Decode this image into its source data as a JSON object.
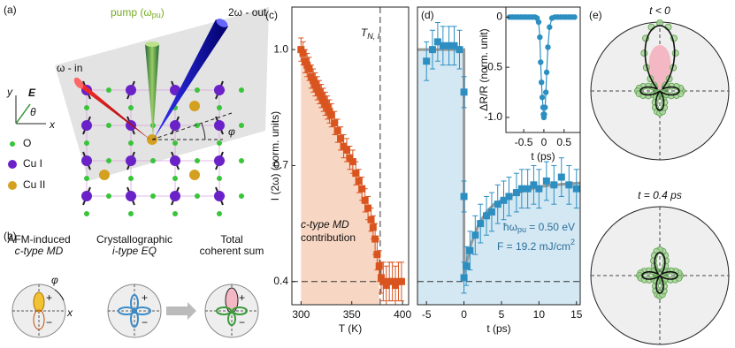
{
  "panel_labels": [
    "(a)",
    "(b)",
    "(c)",
    "(d)",
    "(e)"
  ],
  "panel_a": {
    "pump": [
      "pump (ω",
      "pu",
      ")"
    ],
    "out": "2ω - out",
    "in": "ω - in",
    "axes": [
      "y",
      "E",
      "θ",
      "x"
    ],
    "phi": "φ",
    "legend": [
      "O",
      "Cu I",
      "Cu II"
    ]
  },
  "panel_b": {
    "titles": [
      [
        "AFM-induced",
        "c-type MD"
      ],
      [
        "Crystallographic",
        "i-type EQ"
      ],
      [
        "Total",
        "coherent sum"
      ]
    ],
    "phi": "φ",
    "x": "x",
    "signs": [
      "+",
      "−"
    ]
  },
  "panel_e": {
    "titles": [
      "t < 0",
      "t = 0.4 ps"
    ]
  },
  "chart_data": [
    {
      "type": "scatter",
      "marker": "square",
      "color": "#d9541e",
      "fill": "#f8d6c4",
      "xlabel": "T (K)",
      "ylabel": "I (2ω) (norm. units)",
      "vline": 378,
      "vline_label": [
        "T",
        "N, I"
      ],
      "hline": 0.4,
      "annotation_lines": [
        "c-type MD",
        "contribution"
      ],
      "xlim": [
        291,
        406
      ],
      "ylim": [
        0.34,
        1.11
      ],
      "xticks": [
        300,
        350,
        400
      ],
      "yticks": [
        0.4,
        0.7,
        {
          "value": 1,
          "label": "1.0"
        }
      ],
      "x": [
        300,
        302,
        304,
        306,
        308,
        310,
        312,
        314,
        316,
        318,
        320,
        322,
        324,
        326,
        328,
        330,
        333,
        336,
        339,
        342,
        345,
        348,
        351,
        354,
        357,
        360,
        363,
        366,
        369,
        371,
        373,
        375,
        377,
        379,
        381,
        384,
        387,
        390,
        393,
        396,
        399
      ],
      "values": [
        1.0,
        0.99,
        0.97,
        0.96,
        0.95,
        0.93,
        0.92,
        0.91,
        0.9,
        0.89,
        0.88,
        0.87,
        0.86,
        0.85,
        0.84,
        0.83,
        0.81,
        0.79,
        0.77,
        0.75,
        0.74,
        0.72,
        0.71,
        0.68,
        0.66,
        0.64,
        0.61,
        0.59,
        0.56,
        0.54,
        0.51,
        0.47,
        0.44,
        0.41,
        0.4,
        0.39,
        0.4,
        0.4,
        0.39,
        0.4,
        0.4
      ],
      "errors": [
        0.03,
        0.03,
        0.03,
        0.03,
        0.03,
        0.03,
        0.03,
        0.03,
        0.03,
        0.03,
        0.03,
        0.03,
        0.03,
        0.03,
        0.03,
        0.03,
        0.03,
        0.03,
        0.03,
        0.03,
        0.03,
        0.03,
        0.03,
        0.03,
        0.03,
        0.03,
        0.03,
        0.03,
        0.03,
        0.03,
        0.04,
        0.04,
        0.04,
        0.04,
        0.05,
        0.05,
        0.05,
        0.05,
        0.05,
        0.05,
        0.05
      ]
    },
    {
      "type": "scatter",
      "marker": "square",
      "color": "#2d8fc1",
      "fill": "#d3e8f3",
      "xlabel": "t (ps)",
      "hline": 0.4,
      "annotations": [
        [
          "ħω",
          "pu",
          " = 0.50 eV"
        ],
        [
          "F = 19.2 mJ/cm",
          "2"
        ]
      ],
      "xlim": [
        -6.2,
        15.5
      ],
      "ylim": [
        0.34,
        1.11
      ],
      "xticks": [
        -5,
        0,
        5,
        10,
        15
      ],
      "x": [
        -5,
        -4.2,
        -3.5,
        -2.8,
        -2,
        -1.3,
        -0.6,
        0,
        0,
        0,
        0.3,
        0.8,
        1.5,
        2.2,
        3,
        3.7,
        4.5,
        5.3,
        6,
        7,
        7.7,
        8.5,
        9.3,
        10,
        11,
        12,
        13,
        14,
        15
      ],
      "values": [
        0.97,
        1,
        1.02,
        1.01,
        1.01,
        1.01,
        1,
        0.89,
        0.62,
        0.41,
        0.44,
        0.48,
        0.52,
        0.55,
        0.57,
        0.58,
        0.6,
        0.61,
        0.62,
        0.63,
        0.64,
        0.64,
        0.65,
        0.64,
        0.66,
        0.65,
        0.67,
        0.65,
        0.64
      ],
      "errors": [
        0.05,
        0.05,
        0.05,
        0.05,
        0.05,
        0.05,
        0.05,
        0.04,
        0.04,
        0.04,
        0.05,
        0.05,
        0.05,
        0.05,
        0.05,
        0.05,
        0.05,
        0.05,
        0.05,
        0.05,
        0.05,
        0.05,
        0.05,
        0.05,
        0.05,
        0.05,
        0.05,
        0.05,
        0.05
      ],
      "fit": {
        "color": "#999999",
        "x": [
          -6.2,
          0,
          0,
          0.5,
          1,
          2,
          3,
          4,
          6,
          8,
          10,
          12,
          15.5
        ],
        "values": [
          1,
          1,
          0.42,
          0.46,
          0.5,
          0.55,
          0.58,
          0.6,
          0.62,
          0.635,
          0.645,
          0.65,
          0.655
        ]
      }
    },
    {
      "type": "line",
      "marker": "circle",
      "color": "#2d8fc1",
      "xlabel": "t (ps)",
      "ylabel": "ΔR/R (norm. unit)",
      "xlim": [
        -0.94,
        0.9
      ],
      "ylim": [
        -1.15,
        0.1
      ],
      "xticks": [
        -0.5,
        0,
        0.5
      ],
      "yticks": [
        0,
        -0.5,
        {
          "value": -1,
          "label": "-1.0"
        }
      ],
      "x": [
        -0.85,
        -0.78,
        -0.71,
        -0.64,
        -0.57,
        -0.5,
        -0.43,
        -0.36,
        -0.29,
        -0.22,
        -0.17,
        -0.13,
        -0.1,
        -0.08,
        -0.06,
        -0.04,
        -0.02,
        -0.01,
        0,
        0.01,
        0.03,
        0.05,
        0.07,
        0.1,
        0.14,
        0.2,
        0.27,
        0.34,
        0.41,
        0.48,
        0.55,
        0.62,
        0.69,
        0.76
      ],
      "values": [
        0,
        0,
        0,
        0,
        0,
        0,
        0,
        0,
        0,
        0,
        -0.01,
        -0.05,
        -0.2,
        -0.45,
        -0.65,
        -0.8,
        -0.9,
        -0.97,
        -1,
        -0.97,
        -0.9,
        -0.75,
        -0.55,
        -0.3,
        -0.1,
        -0.01,
        0,
        0,
        0,
        0,
        0,
        0,
        0,
        0
      ]
    }
  ]
}
